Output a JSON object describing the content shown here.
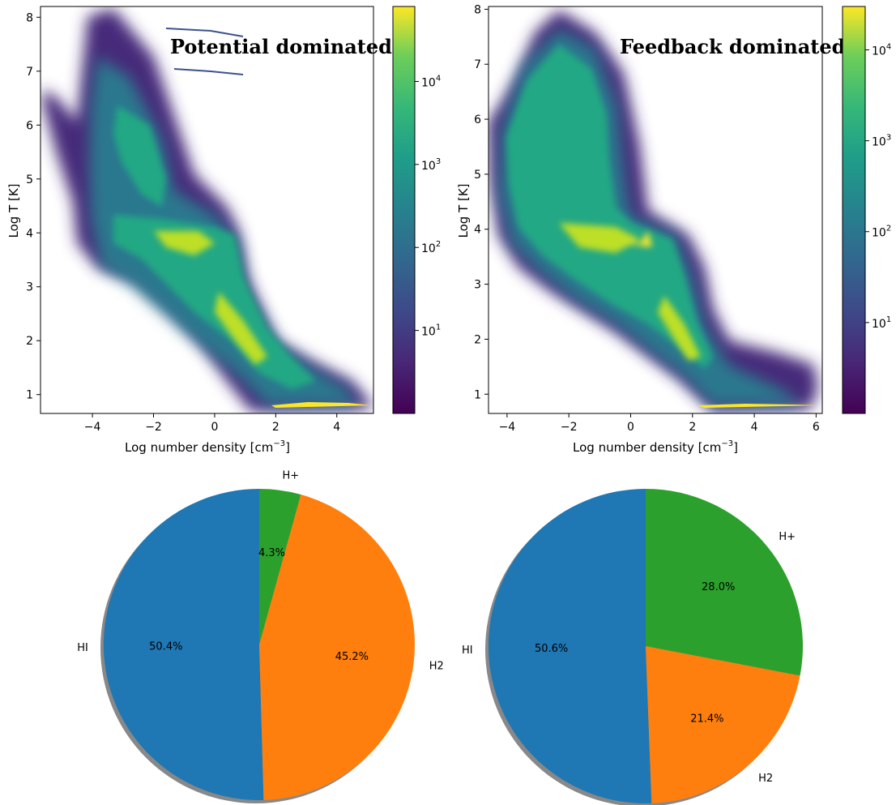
{
  "chart_data": [
    {
      "type": "heatmap",
      "title": "Potential dominated",
      "xlabel": "Log number density [cm",
      "xlabel_sup": "−3",
      "xlabel_close": "]",
      "ylabel": "Log T [K]",
      "xlim": [
        -5.7,
        5.2
      ],
      "ylim": [
        0.65,
        8.2
      ],
      "xticks": [
        "−4",
        "−2",
        "0",
        "2",
        "4"
      ],
      "xtick_values": [
        -4,
        -2,
        0,
        2,
        4
      ],
      "yticks": [
        "1",
        "2",
        "3",
        "4",
        "5",
        "6",
        "7",
        "8"
      ],
      "ytick_values": [
        1,
        2,
        3,
        4,
        5,
        6,
        7,
        8
      ],
      "grid": false,
      "colormap": "viridis",
      "colorbar": {
        "scale": "log",
        "range": [
          1,
          80000
        ],
        "ticks": [
          {
            "base": "10",
            "exp": "1",
            "value": 10
          },
          {
            "base": "10",
            "exp": "2",
            "value": 100
          },
          {
            "base": "10",
            "exp": "3",
            "value": 1000
          },
          {
            "base": "10",
            "exp": "4",
            "value": 10000
          }
        ]
      }
    },
    {
      "type": "heatmap",
      "title": "Feedback dominated",
      "xlabel": "Log number density [cm",
      "xlabel_sup": "−3",
      "xlabel_close": "]",
      "ylabel": "Log T [K]",
      "xlim": [
        -4.6,
        6.2
      ],
      "ylim": [
        0.65,
        8.05
      ],
      "xticks": [
        "−4",
        "−2",
        "0",
        "2",
        "4",
        "6"
      ],
      "xtick_values": [
        -4,
        -2,
        0,
        2,
        4,
        6
      ],
      "yticks": [
        "1",
        "2",
        "3",
        "4",
        "5",
        "6",
        "7",
        "8"
      ],
      "ytick_values": [
        1,
        2,
        3,
        4,
        5,
        6,
        7,
        8
      ],
      "grid": false,
      "colormap": "viridis",
      "colorbar": {
        "scale": "log",
        "range": [
          1,
          30000
        ],
        "ticks": [
          {
            "base": "10",
            "exp": "1",
            "value": 10
          },
          {
            "base": "10",
            "exp": "2",
            "value": 100
          },
          {
            "base": "10",
            "exp": "3",
            "value": 1000
          },
          {
            "base": "10",
            "exp": "4",
            "value": 10000
          }
        ]
      }
    },
    {
      "type": "pie",
      "categories": [
        "HI",
        "H2",
        "H+"
      ],
      "values": [
        50.4,
        45.2,
        4.3
      ],
      "labels": [
        "50.4%",
        "45.2%",
        "4.3%"
      ],
      "colors": [
        "#1f77b4",
        "#ff7f0e",
        "#2ca02c"
      ],
      "start_angle_deg": 90,
      "shadow": true
    },
    {
      "type": "pie",
      "categories": [
        "HI",
        "H2",
        "H+"
      ],
      "values": [
        50.6,
        21.4,
        28.0
      ],
      "labels": [
        "50.6%",
        "21.4%",
        "28.0%"
      ],
      "colors": [
        "#1f77b4",
        "#ff7f0e",
        "#2ca02c"
      ],
      "start_angle_deg": 90,
      "shadow": true
    }
  ]
}
